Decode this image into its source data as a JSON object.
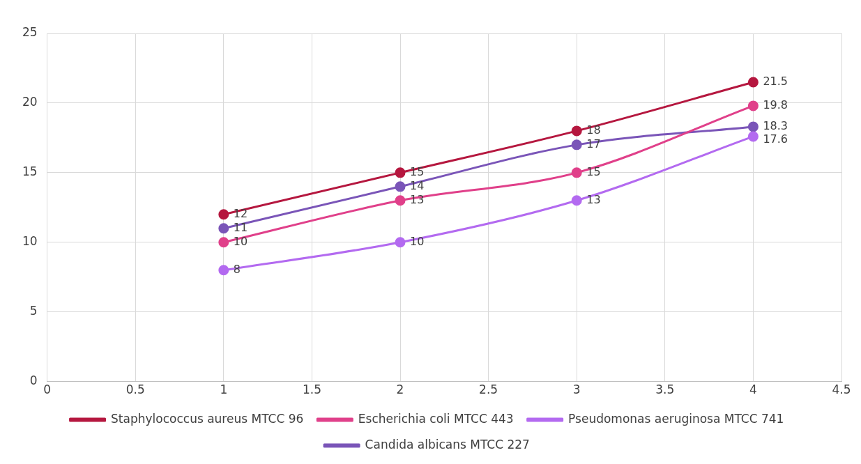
{
  "chart_data": {
    "type": "line",
    "x": [
      1,
      2,
      3,
      4
    ],
    "series": [
      {
        "name": "Staphylococcus aureus MTCC 96",
        "color": "#b5173f",
        "values": [
          12,
          15,
          18,
          21.5
        ]
      },
      {
        "name": "Escherichia coli MTCC 443",
        "color": "#e0408a",
        "values": [
          10,
          13,
          15,
          19.8
        ]
      },
      {
        "name": "Pseudomonas aeruginosa MTCC 741",
        "color": "#b36af0",
        "values": [
          8,
          10,
          13,
          17.6
        ]
      },
      {
        "name": "Candida albicans MTCC 227",
        "color": "#7a55b8",
        "values": [
          11,
          14,
          17,
          18.3
        ]
      }
    ],
    "xlim": [
      0,
      4.5
    ],
    "xticks": [
      0,
      0.5,
      1,
      1.5,
      2,
      2.5,
      3,
      3.5,
      4,
      4.5
    ],
    "ylim": [
      0,
      25
    ],
    "yticks": [
      0,
      5,
      10,
      15,
      20,
      25
    ],
    "grid": true,
    "legend": "bottom",
    "marker": "circle",
    "line_style": "solid",
    "data_labels": true
  }
}
